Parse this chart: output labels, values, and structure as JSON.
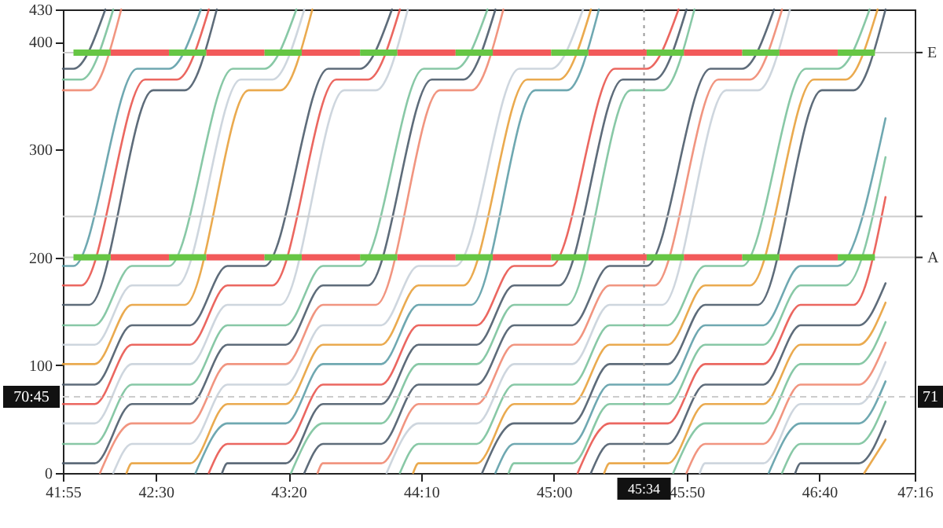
{
  "chart_data": {
    "type": "line",
    "grid": false,
    "xlim": [
      2515,
      2836
    ],
    "xticks": [
      {
        "value": 2515,
        "label": "41:55"
      },
      {
        "value": 2550,
        "label": "42:30"
      },
      {
        "value": 2600,
        "label": "43:20"
      },
      {
        "value": 2650,
        "label": "44:10"
      },
      {
        "value": 2700,
        "label": "45:00"
      },
      {
        "value": 2750,
        "label": "45:50"
      },
      {
        "value": 2800,
        "label": "46:40"
      },
      {
        "value": 2836,
        "label": "47:16"
      }
    ],
    "ylim": [
      0,
      430
    ],
    "yticks": [
      0,
      100,
      200,
      300,
      400,
      430
    ],
    "ref_lines": [
      {
        "axis": "y",
        "value": 200,
        "label": "A",
        "color": "#cccccc"
      },
      {
        "axis": "y",
        "value": 238,
        "label": null,
        "color": "#cccccc"
      },
      {
        "axis": "y",
        "value": 390,
        "label": "E",
        "color": "#cccccc"
      },
      {
        "axis": "x",
        "value": 2734,
        "line_style": "dotted",
        "color": "#999999"
      },
      {
        "axis": "y",
        "value": 70.75,
        "line_style": "dashed",
        "color": "#cccccc"
      }
    ],
    "annotations": [
      {
        "text": "45:34",
        "x": 2734
      },
      {
        "text": "70:45",
        "y": 70.75
      },
      {
        "text": "71",
        "y": 70.75
      }
    ],
    "series": [
      {
        "color": "#4d5c6b",
        "x": [
          2515,
          2519,
          2531
        ],
        "values": [
          375,
          375,
          430
        ]
      },
      {
        "color": "#7bc29c",
        "x": [
          2515,
          2522,
          2534
        ],
        "values": [
          365,
          365,
          430
        ]
      },
      {
        "color": "#ef8a72",
        "x": [
          2515,
          2525,
          2537
        ],
        "values": [
          355,
          355,
          430
        ]
      },
      {
        "color": "#5f9ea8",
        "x": [
          2515,
          2519,
          2543,
          2555,
          2567
        ],
        "values": [
          192,
          192,
          375,
          375,
          430
        ]
      },
      {
        "color": "#e9564f",
        "x": [
          2515,
          2522,
          2546,
          2558,
          2570
        ],
        "values": [
          174,
          174,
          365,
          365,
          430
        ]
      },
      {
        "color": "#4d5c6b",
        "x": [
          2515,
          2525,
          2549,
          2561,
          2573
        ],
        "values": [
          156,
          156,
          355,
          355,
          430
        ]
      },
      {
        "color": "#7bc29c",
        "x": [
          2515,
          2527,
          2541,
          2555,
          2579,
          2591,
          2603
        ],
        "values": [
          137,
          137,
          192,
          192,
          375,
          375,
          430
        ]
      },
      {
        "color": "#c9d1da",
        "x": [
          2515,
          2527,
          2541,
          2558,
          2582,
          2594,
          2606
        ],
        "values": [
          119,
          119,
          174,
          174,
          365,
          365,
          430
        ]
      },
      {
        "color": "#e8a13c",
        "x": [
          2515,
          2527,
          2541,
          2561,
          2585,
          2597,
          2609
        ],
        "values": [
          101,
          101,
          156,
          156,
          355,
          355,
          430
        ]
      },
      {
        "color": "#4d5c6b",
        "x": [
          2515,
          2527,
          2541,
          2563,
          2577,
          2591,
          2615,
          2627,
          2639
        ],
        "values": [
          82,
          82,
          137,
          137,
          192,
          192,
          375,
          375,
          430
        ]
      },
      {
        "color": "#e9564f",
        "x": [
          2515,
          2527,
          2541,
          2563,
          2577,
          2594,
          2618,
          2630,
          2642
        ],
        "values": [
          64,
          64,
          119,
          119,
          174,
          174,
          365,
          365,
          430
        ]
      },
      {
        "color": "#c9d1da",
        "x": [
          2515,
          2527,
          2541,
          2563,
          2577,
          2597,
          2621,
          2633,
          2645
        ],
        "values": [
          46,
          46,
          101,
          101,
          156,
          156,
          355,
          355,
          430
        ]
      },
      {
        "color": "#7bc29c",
        "x": [
          2515,
          2527,
          2541,
          2563,
          2577,
          2599,
          2613,
          2627,
          2651,
          2663,
          2675
        ],
        "values": [
          27,
          27,
          82,
          82,
          137,
          137,
          192,
          192,
          375,
          375,
          430
        ]
      },
      {
        "color": "#4d5c6b",
        "x": [
          2515,
          2527,
          2541,
          2563,
          2577,
          2599,
          2613,
          2630,
          2654,
          2666,
          2678
        ],
        "values": [
          9,
          9,
          64,
          64,
          119,
          119,
          174,
          174,
          365,
          365,
          430
        ]
      },
      {
        "color": "#ef8a72",
        "x": [
          2529,
          2541,
          2563,
          2577,
          2599,
          2613,
          2633,
          2657,
          2669,
          2681
        ],
        "values": [
          0,
          46,
          46,
          101,
          101,
          156,
          156,
          355,
          355,
          430
        ]
      },
      {
        "color": "#c9d1da",
        "x": [
          2534,
          2541,
          2563,
          2577,
          2599,
          2613,
          2635,
          2649,
          2663,
          2687,
          2699,
          2711
        ],
        "values": [
          0,
          27,
          27,
          82,
          82,
          137,
          137,
          192,
          192,
          375,
          375,
          430
        ]
      },
      {
        "color": "#e8a13c",
        "x": [
          2539,
          2541,
          2563,
          2577,
          2599,
          2613,
          2635,
          2649,
          2666,
          2690,
          2702,
          2714
        ],
        "values": [
          0,
          9,
          9,
          64,
          64,
          119,
          119,
          174,
          174,
          365,
          365,
          430
        ]
      },
      {
        "color": "#5f9ea8",
        "x": [
          2565,
          2577,
          2599,
          2613,
          2635,
          2649,
          2669,
          2693,
          2705,
          2717
        ],
        "values": [
          0,
          46,
          46,
          101,
          101,
          156,
          156,
          355,
          355,
          430
        ]
      },
      {
        "color": "#e9564f",
        "x": [
          2570,
          2577,
          2599,
          2613,
          2635,
          2649,
          2671,
          2685,
          2699,
          2723,
          2735,
          2747
        ],
        "values": [
          0,
          27,
          27,
          82,
          82,
          137,
          137,
          192,
          192,
          375,
          375,
          430
        ]
      },
      {
        "color": "#4d5c6b",
        "x": [
          2575,
          2577,
          2599,
          2613,
          2635,
          2649,
          2671,
          2685,
          2702,
          2726,
          2738,
          2750
        ],
        "values": [
          0,
          9,
          9,
          64,
          64,
          119,
          119,
          174,
          174,
          365,
          365,
          430
        ]
      },
      {
        "color": "#7bc29c",
        "x": [
          2601,
          2613,
          2635,
          2649,
          2671,
          2685,
          2705,
          2729,
          2741,
          2753
        ],
        "values": [
          0,
          46,
          46,
          101,
          101,
          156,
          156,
          355,
          355,
          430
        ]
      },
      {
        "color": "#4d5c6b",
        "x": [
          2606,
          2613,
          2635,
          2649,
          2671,
          2685,
          2707,
          2721,
          2735,
          2759,
          2771,
          2783
        ],
        "values": [
          0,
          27,
          27,
          82,
          82,
          137,
          137,
          192,
          192,
          375,
          375,
          430
        ]
      },
      {
        "color": "#ef8a72",
        "x": [
          2611,
          2613,
          2635,
          2649,
          2671,
          2685,
          2707,
          2721,
          2738,
          2762,
          2774,
          2786
        ],
        "values": [
          0,
          9,
          9,
          64,
          64,
          119,
          119,
          174,
          174,
          365,
          365,
          430
        ]
      },
      {
        "color": "#c9d1da",
        "x": [
          2637,
          2649,
          2671,
          2685,
          2707,
          2721,
          2741,
          2765,
          2777,
          2789
        ],
        "values": [
          0,
          46,
          46,
          101,
          101,
          156,
          156,
          355,
          355,
          430
        ]
      },
      {
        "color": "#7bc29c",
        "x": [
          2642,
          2649,
          2671,
          2685,
          2707,
          2721,
          2743,
          2757,
          2771,
          2795,
          2807,
          2819
        ],
        "values": [
          0,
          27,
          27,
          82,
          82,
          137,
          137,
          192,
          192,
          375,
          375,
          430
        ]
      },
      {
        "color": "#e8a13c",
        "x": [
          2647,
          2649,
          2671,
          2685,
          2707,
          2721,
          2743,
          2757,
          2774,
          2798,
          2810,
          2822
        ],
        "values": [
          0,
          9,
          9,
          64,
          64,
          119,
          119,
          174,
          174,
          365,
          365,
          430
        ]
      },
      {
        "color": "#4d5c6b",
        "x": [
          2673,
          2685,
          2707,
          2721,
          2743,
          2757,
          2777,
          2801,
          2813,
          2825
        ],
        "values": [
          0,
          46,
          46,
          101,
          101,
          156,
          156,
          355,
          355,
          430
        ]
      },
      {
        "color": "#5f9ea8",
        "x": [
          2678,
          2685,
          2707,
          2721,
          2743,
          2757,
          2779,
          2793,
          2807,
          2825
        ],
        "values": [
          0,
          27,
          27,
          82,
          82,
          137,
          137,
          192,
          192,
          329
        ]
      },
      {
        "color": "#7bc29c",
        "x": [
          2683,
          2685,
          2707,
          2721,
          2743,
          2757,
          2779,
          2793,
          2810,
          2825
        ],
        "values": [
          0,
          9,
          9,
          64,
          64,
          119,
          119,
          174,
          174,
          293
        ]
      },
      {
        "color": "#e9564f",
        "x": [
          2709,
          2721,
          2743,
          2757,
          2779,
          2793,
          2813,
          2825
        ],
        "values": [
          0,
          46,
          46,
          101,
          101,
          156,
          156,
          256
        ]
      },
      {
        "color": "#4d5c6b",
        "x": [
          2714,
          2721,
          2743,
          2757,
          2779,
          2793,
          2815,
          2825
        ],
        "values": [
          0,
          27,
          27,
          82,
          82,
          137,
          137,
          176
        ]
      },
      {
        "color": "#e8a13c",
        "x": [
          2719,
          2721,
          2743,
          2757,
          2779,
          2793,
          2815,
          2825
        ],
        "values": [
          0,
          9,
          9,
          64,
          64,
          119,
          119,
          158
        ]
      },
      {
        "color": "#7bc29c",
        "x": [
          2745,
          2757,
          2779,
          2793,
          2815,
          2825
        ],
        "values": [
          0,
          46,
          46,
          101,
          101,
          140
        ]
      },
      {
        "color": "#ef8a72",
        "x": [
          2750,
          2757,
          2779,
          2793,
          2815,
          2825
        ],
        "values": [
          0,
          27,
          27,
          82,
          82,
          121
        ]
      },
      {
        "color": "#c9d1da",
        "x": [
          2755,
          2757,
          2779,
          2793,
          2815,
          2825
        ],
        "values": [
          0,
          9,
          9,
          64,
          64,
          103
        ]
      },
      {
        "color": "#5f9ea8",
        "x": [
          2781,
          2793,
          2815,
          2825
        ],
        "values": [
          0,
          46,
          46,
          85
        ]
      },
      {
        "color": "#7bc29c",
        "x": [
          2786,
          2793,
          2815,
          2825
        ],
        "values": [
          0,
          27,
          27,
          66
        ]
      },
      {
        "color": "#4d5c6b",
        "x": [
          2791,
          2793,
          2815,
          2825
        ],
        "values": [
          0,
          9,
          9,
          48
        ]
      },
      {
        "color": "#e8a13c",
        "x": [
          2817,
          2825
        ],
        "values": [
          0,
          31
        ]
      },
      {
        "type": "step",
        "color": "#f25a5a",
        "x": [
          2533,
          2555,
          2562,
          2569,
          2591,
          2598,
          2605,
          2627,
          2634,
          2641,
          2663,
          2670,
          2677,
          2699,
          2706,
          2713,
          2735,
          2742,
          2749,
          2771,
          2778,
          2785,
          2807
        ],
        "values": [
          200,
          200,
          null,
          200,
          200,
          null,
          200,
          200,
          null,
          200,
          200,
          null,
          200,
          200,
          null,
          200,
          200,
          null,
          200,
          200,
          null,
          200,
          200
        ]
      },
      {
        "type": "step",
        "color": "#66c644",
        "x": [
          2519,
          2533,
          2544,
          2555,
          2569,
          2580,
          2591,
          2605,
          2616,
          2627,
          2641,
          2652,
          2663,
          2677,
          2688,
          2699,
          2713,
          2724,
          2735,
          2749,
          2760,
          2771,
          2785,
          2796,
          2807,
          2821
        ],
        "values": [
          200,
          200,
          null,
          200,
          200,
          null,
          200,
          200,
          null,
          200,
          200,
          null,
          200,
          200,
          null,
          200,
          200,
          null,
          200,
          200,
          null,
          200,
          200,
          null,
          200,
          200
        ]
      },
      {
        "type": "step",
        "color": "#f25a5a",
        "x": [
          2533,
          2555,
          2562,
          2569,
          2591,
          2598,
          2605,
          2627,
          2634,
          2641,
          2663,
          2670,
          2677,
          2699,
          2706,
          2713,
          2735,
          2742,
          2749,
          2771,
          2778,
          2785,
          2807
        ],
        "values": [
          390,
          390,
          null,
          390,
          390,
          null,
          390,
          390,
          null,
          390,
          390,
          null,
          390,
          390,
          null,
          390,
          390,
          null,
          390,
          390,
          null,
          390,
          390
        ]
      },
      {
        "type": "step",
        "color": "#66c644",
        "x": [
          2519,
          2533,
          2544,
          2555,
          2569,
          2580,
          2591,
          2605,
          2616,
          2627,
          2641,
          2652,
          2663,
          2677,
          2688,
          2699,
          2713,
          2724,
          2735,
          2749,
          2760,
          2771,
          2785,
          2796,
          2807,
          2821
        ],
        "values": [
          390,
          390,
          null,
          390,
          390,
          null,
          390,
          390,
          null,
          390,
          390,
          null,
          390,
          390,
          null,
          390,
          390,
          null,
          390,
          390,
          null,
          390,
          390,
          null,
          390,
          390
        ]
      }
    ]
  }
}
